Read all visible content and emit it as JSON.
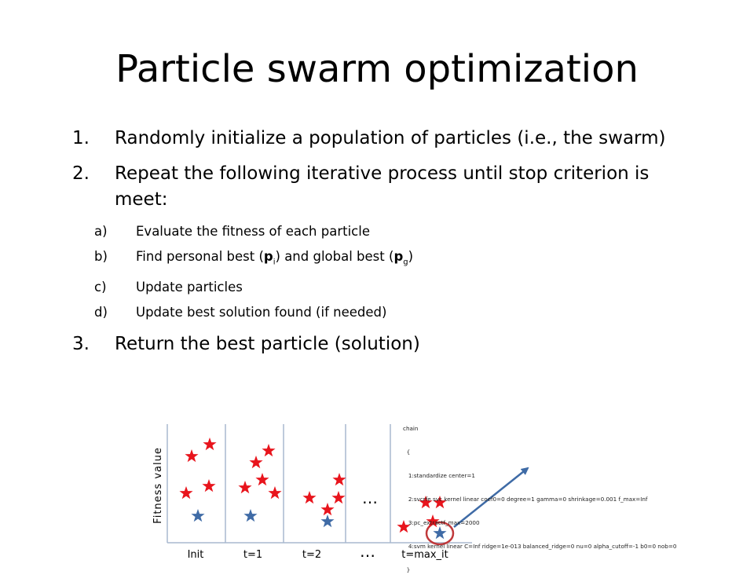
{
  "slide": {
    "title": "Particle swarm optimization",
    "steps": [
      {
        "num": "1.",
        "text": "Randomly initialize a population of particles (i.e., the swarm)"
      },
      {
        "num": "2.",
        "text": "Repeat the following iterative process until stop criterion is meet:"
      },
      {
        "num": "3.",
        "text": "Return the best particle (solution)"
      }
    ],
    "substeps": [
      {
        "num": "a)",
        "text": "Evaluate the fitness of each particle"
      },
      {
        "num": "b)",
        "pre": "Find personal best (",
        "b1": "p",
        "s1": "i",
        "mid": ") and global best (",
        "b2": "p",
        "s2": "g",
        "post": ")"
      },
      {
        "num": "c)",
        "text": "Update particles"
      },
      {
        "num": "d)",
        "text": "Update best solution found (if needed)"
      }
    ]
  },
  "diagram": {
    "y_axis_label": "Fitness value",
    "x_labels": [
      "Init",
      "t=1",
      "t=2",
      "t=max_it"
    ],
    "ellipsis_top": "…",
    "ellipsis_bottom": "…",
    "code_lines": [
      "chain",
      "  {",
      "   1:standardize center=1",
      "   2:svcrfe svc kernel linear coef0=0 degree=1 gamma=0 shrinkage=0.001 f_max=Inf",
      "   3:pc_extractf_max=2000",
      "   4:svm kernel linear C=Inf ridge=1e-013 balanced_ridge=0 nu=0 alpha_cutoff=-1 b0=0 nob=0",
      "  }"
    ],
    "colors": {
      "red_star": "#e8141c",
      "blue_star": "#3f6ba6",
      "arrow": "#3f6ba6",
      "circle": "#c0393b",
      "axis": "#a9b8cf"
    }
  }
}
